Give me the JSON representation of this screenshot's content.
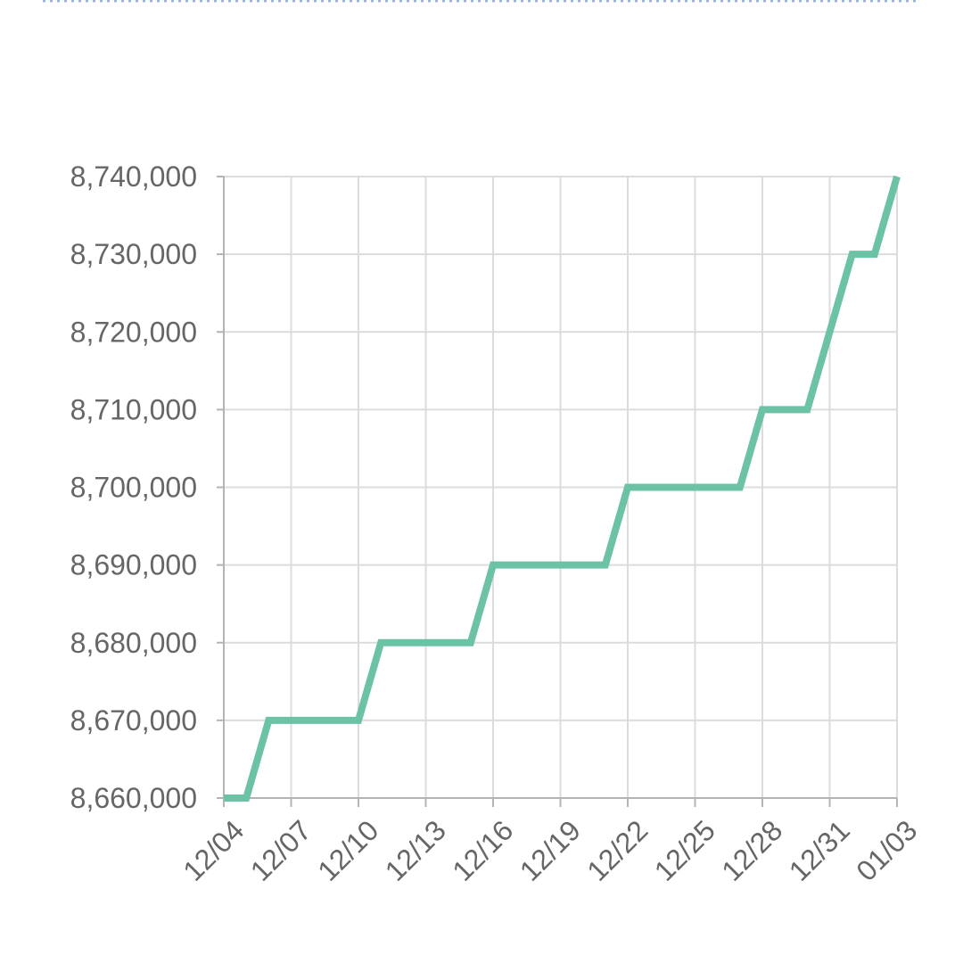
{
  "chart_data": {
    "type": "line",
    "title": "",
    "xlabel": "",
    "ylabel": "",
    "x": [
      "12/04",
      "12/05",
      "12/06",
      "12/07",
      "12/08",
      "12/09",
      "12/10",
      "12/11",
      "12/12",
      "12/13",
      "12/14",
      "12/15",
      "12/16",
      "12/17",
      "12/18",
      "12/19",
      "12/20",
      "12/21",
      "12/22",
      "12/23",
      "12/24",
      "12/25",
      "12/26",
      "12/27",
      "12/28",
      "12/29",
      "12/30",
      "12/31",
      "01/01",
      "01/02",
      "01/03"
    ],
    "x_tick_labels": [
      "12/04",
      "12/07",
      "12/10",
      "12/13",
      "12/16",
      "12/19",
      "12/22",
      "12/25",
      "12/28",
      "12/31",
      "01/03"
    ],
    "y_tick_labels": [
      "8,660,000",
      "8,670,000",
      "8,680,000",
      "8,690,000",
      "8,700,000",
      "8,710,000",
      "8,720,000",
      "8,730,000",
      "8,740,000"
    ],
    "y_ticks": [
      8660000,
      8670000,
      8680000,
      8690000,
      8700000,
      8710000,
      8720000,
      8730000,
      8740000
    ],
    "ylim": [
      8660000,
      8740000
    ],
    "grid": true,
    "legend": "none",
    "series": [
      {
        "color": "#6cc2a5",
        "values": [
          8660000,
          8660000,
          8670000,
          8670000,
          8670000,
          8670000,
          8670000,
          8680000,
          8680000,
          8680000,
          8680000,
          8680000,
          8690000,
          8690000,
          8690000,
          8690000,
          8690000,
          8690000,
          8700000,
          8700000,
          8700000,
          8700000,
          8700000,
          8700000,
          8710000,
          8710000,
          8710000,
          8720000,
          8730000,
          8730000,
          8740000
        ]
      }
    ]
  }
}
